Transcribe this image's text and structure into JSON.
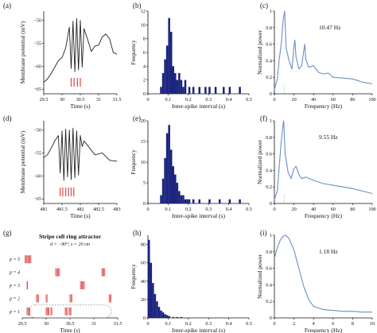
{
  "panels": [
    {
      "id": "a",
      "label": "(a)",
      "xlabel": "Time (s)",
      "ylabel": "Membrane potential (mV)",
      "xticks": [
        "29.5",
        "30",
        "30.5",
        "31",
        "31.5"
      ],
      "yticks": [
        "−50",
        "−55",
        "−60",
        "−65"
      ]
    },
    {
      "id": "b",
      "label": "(b)",
      "xlabel": "Inter-spike interval (s)",
      "ylabel": "Frequency",
      "xticks": [
        "0",
        "0.1",
        "0.2",
        "0.3",
        "0.4",
        "0.5"
      ],
      "yticks": [
        "0",
        "2",
        "4",
        "6",
        "8",
        "10",
        "12"
      ]
    },
    {
      "id": "c",
      "label": "(c)",
      "xlabel": "Frequency (Hz)",
      "ylabel": "Normalized power",
      "annotation": "10.47 Hz",
      "xticks": [
        "0",
        "20",
        "40",
        "60",
        "80",
        "100"
      ],
      "yticks": [
        "0",
        "0.2",
        "0.4",
        "0.6",
        "0.8",
        "1"
      ]
    },
    {
      "id": "d",
      "label": "(d)",
      "xlabel": "Time (s)",
      "ylabel": "Membrane potential (mV)",
      "xticks": [
        "481",
        "481.5",
        "482",
        "482.5",
        "483"
      ],
      "yticks": [
        "−50",
        "−55",
        "−60",
        "−65"
      ]
    },
    {
      "id": "e",
      "label": "(e)",
      "xlabel": "Inter-spike interval (s)",
      "ylabel": "Frequency",
      "xticks": [
        "0",
        "0.1",
        "0.2",
        "0.3",
        "0.4",
        "0.5"
      ],
      "yticks": [
        "0",
        "5",
        "10",
        "15",
        "20"
      ]
    },
    {
      "id": "f",
      "label": "(f)",
      "xlabel": "Frequency (Hz)",
      "ylabel": "Normalized power",
      "annotation": "9.55 Hz",
      "xticks": [
        "0",
        "20",
        "40",
        "60",
        "80",
        "100"
      ],
      "yticks": [
        "0",
        "0.2",
        "0.4",
        "0.6",
        "0.8",
        "1"
      ]
    },
    {
      "id": "g",
      "label": "(g)",
      "xlabel": "Time (s)",
      "title": "Stripe cell ring attractor",
      "subtitle": "d = −90°; s = 20 cm",
      "xticks": [
        "29.5",
        "30",
        "30.5",
        "31",
        "31.5"
      ],
      "rows": [
        "p = 5",
        "p = 4",
        "p = 3",
        "p = 2",
        "p = 1"
      ]
    },
    {
      "id": "h",
      "label": "(h)",
      "xlabel": "Inter-spike interval (s)",
      "ylabel": "Frequency",
      "xticks": [
        "0",
        "0.1",
        "0.2",
        "0.3",
        "0.4",
        "0.5"
      ],
      "yticks": [
        "0",
        "20",
        "40",
        "60",
        "80"
      ]
    },
    {
      "id": "i",
      "label": "(i)",
      "xlabel": "Frequency (Hz)",
      "ylabel": "Normalized power",
      "annotation": "1.18 Hz",
      "xticks": [
        "0",
        "2",
        "4",
        "6",
        "8",
        "10"
      ],
      "yticks": [
        "0",
        "0.2",
        "0.4",
        "0.6",
        "0.8",
        "1"
      ]
    }
  ],
  "chart_data": [
    {
      "panel": "a",
      "type": "line",
      "xlim": [
        29.5,
        31.5
      ],
      "ylim": [
        -66,
        -48
      ],
      "x": [
        29.5,
        29.6,
        29.7,
        29.8,
        29.9,
        30.0,
        30.1,
        30.2,
        30.25,
        30.3,
        30.35,
        30.4,
        30.45,
        30.5,
        30.55,
        30.6,
        30.7,
        30.8,
        30.9,
        31.0,
        31.1,
        31.2,
        31.3,
        31.4,
        31.5
      ],
      "y": [
        -63.5,
        -62.8,
        -61.6,
        -60.2,
        -58.8,
        -58.1,
        -56.0,
        -51.5,
        -60.5,
        -50.2,
        -61.2,
        -49.6,
        -60.8,
        -50.0,
        -60.2,
        -51.8,
        -54.2,
        -56.8,
        -55.6,
        -55.4,
        -53.6,
        -53.0,
        -54.0,
        -57.0,
        -57.4
      ],
      "spike_times": [
        30.25,
        30.33,
        30.42,
        30.5
      ]
    },
    {
      "panel": "b",
      "type": "bar",
      "xlim": [
        0,
        0.5
      ],
      "ylim": [
        0,
        12
      ],
      "bins": [
        0.06,
        0.07,
        0.08,
        0.09,
        0.1,
        0.11,
        0.12,
        0.13,
        0.14,
        0.15,
        0.16,
        0.17,
        0.18,
        0.2,
        0.22,
        0.25,
        0.28,
        0.3,
        0.33,
        0.37,
        0.4,
        0.45
      ],
      "values": [
        1,
        3,
        5,
        7,
        11,
        9,
        4,
        3,
        2,
        3,
        2,
        1,
        2,
        1,
        1,
        1,
        1,
        1,
        1,
        1,
        1,
        1
      ]
    },
    {
      "panel": "c",
      "type": "line",
      "xlim": [
        0,
        100
      ],
      "ylim": [
        0,
        1
      ],
      "x": [
        0,
        3,
        5,
        7,
        9,
        10.5,
        12,
        15,
        18,
        20,
        21,
        22,
        25,
        28,
        30,
        31,
        32,
        35,
        40,
        45,
        50,
        55,
        60,
        70,
        80,
        90,
        100
      ],
      "y": [
        0.05,
        0.18,
        0.42,
        0.6,
        0.9,
        1.0,
        0.55,
        0.4,
        0.3,
        0.58,
        0.65,
        0.45,
        0.3,
        0.34,
        0.52,
        0.6,
        0.42,
        0.32,
        0.34,
        0.26,
        0.24,
        0.25,
        0.2,
        0.19,
        0.18,
        0.14,
        0.12
      ]
    },
    {
      "panel": "d",
      "type": "line",
      "xlim": [
        481,
        483
      ],
      "ylim": [
        -66,
        -48
      ],
      "x": [
        481,
        481.1,
        481.2,
        481.3,
        481.4,
        481.45,
        481.5,
        481.55,
        481.6,
        481.65,
        481.7,
        481.75,
        481.8,
        481.85,
        481.9,
        481.95,
        482,
        482.05,
        482.1,
        482.2,
        482.4,
        482.6,
        482.8,
        483
      ],
      "y": [
        -56.0,
        -55.4,
        -54.0,
        -52.4,
        -51.2,
        -59.4,
        -50.2,
        -61.0,
        -49.8,
        -60.2,
        -50.0,
        -60.8,
        -49.6,
        -60.4,
        -50.2,
        -59.8,
        -51.2,
        -53.6,
        -52.4,
        -53.4,
        -55.4,
        -55.0,
        -56.6,
        -56.8
      ],
      "spike_times": [
        481.45,
        481.52,
        481.6,
        481.68,
        481.75,
        481.82
      ]
    },
    {
      "panel": "e",
      "type": "bar",
      "xlim": [
        0,
        0.5
      ],
      "ylim": [
        0,
        20
      ],
      "bins": [
        0.06,
        0.07,
        0.08,
        0.09,
        0.1,
        0.11,
        0.12,
        0.13,
        0.14,
        0.15,
        0.16,
        0.17,
        0.18,
        0.19,
        0.2,
        0.22,
        0.25,
        0.3,
        0.35,
        0.4,
        0.45
      ],
      "values": [
        2,
        6,
        11,
        17,
        19,
        13,
        9,
        7,
        5,
        3,
        2,
        2,
        1,
        1,
        1,
        1,
        1,
        1,
        1,
        1,
        1
      ]
    },
    {
      "panel": "f",
      "type": "line",
      "xlim": [
        0,
        100
      ],
      "ylim": [
        0,
        1
      ],
      "x": [
        0,
        3,
        5,
        7,
        9,
        9.55,
        11,
        14,
        17,
        20,
        22,
        25,
        28,
        32,
        40,
        50,
        60,
        70,
        80,
        90,
        100
      ],
      "y": [
        0.05,
        0.15,
        0.45,
        0.75,
        0.97,
        1.0,
        0.6,
        0.38,
        0.3,
        0.42,
        0.45,
        0.35,
        0.3,
        0.32,
        0.28,
        0.24,
        0.22,
        0.2,
        0.18,
        0.15,
        0.12
      ]
    },
    {
      "panel": "g",
      "type": "scatter",
      "xlim": [
        29.5,
        31.5
      ],
      "series": [
        {
          "name": "p = 5",
          "values": [
            29.56,
            29.58,
            29.6,
            29.62,
            29.64,
            29.66,
            29.68
          ]
        },
        {
          "name": "p = 4",
          "values": [
            30.2,
            30.22,
            30.24,
            30.26,
            30.28,
            31.17,
            31.19,
            31.21,
            31.23
          ]
        },
        {
          "name": "p = 3",
          "values": [
            29.6,
            29.61,
            30.72,
            30.74,
            30.76,
            30.78,
            30.8
          ]
        },
        {
          "name": "p = 2",
          "values": [
            29.8,
            29.82,
            29.84,
            30.0,
            30.02,
            30.5,
            30.52,
            30.54,
            31.32,
            31.34,
            31.36
          ]
        },
        {
          "name": "p = 1",
          "values": [
            29.6,
            29.62,
            29.64,
            29.66,
            30.0,
            30.02,
            30.04,
            30.06,
            30.1,
            30.12,
            30.4,
            30.42,
            30.44,
            30.48,
            30.5,
            30.52
          ]
        }
      ]
    },
    {
      "panel": "h",
      "type": "bar",
      "xlim": [
        0,
        0.5
      ],
      "ylim": [
        0,
        90
      ],
      "bins": [
        0.0,
        0.01,
        0.02,
        0.03,
        0.04,
        0.05,
        0.06,
        0.07,
        0.08,
        0.09,
        0.1,
        0.12,
        0.14,
        0.16
      ],
      "values": [
        85,
        60,
        38,
        26,
        18,
        12,
        8,
        6,
        4,
        3,
        2,
        1,
        1,
        1
      ]
    },
    {
      "panel": "i",
      "type": "line",
      "xlim": [
        0,
        10
      ],
      "ylim": [
        0,
        1
      ],
      "x": [
        0,
        0.3,
        0.6,
        0.9,
        1.18,
        1.5,
        2,
        2.5,
        3,
        3.5,
        4,
        5,
        6,
        7,
        8,
        9,
        10
      ],
      "y": [
        0.72,
        0.85,
        0.94,
        0.99,
        1.0,
        0.96,
        0.82,
        0.6,
        0.38,
        0.22,
        0.14,
        0.1,
        0.09,
        0.08,
        0.08,
        0.07,
        0.07
      ]
    }
  ],
  "colors": {
    "trace": "#222222",
    "spike": "#e05050",
    "bar": "#1a237e",
    "spectrum": "#6a8fc6",
    "zero_line": "#888888"
  }
}
